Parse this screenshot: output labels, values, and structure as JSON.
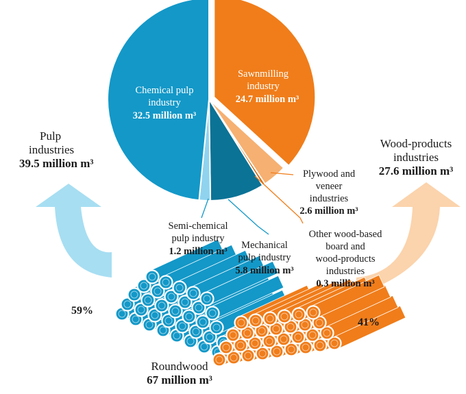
{
  "colors": {
    "chemical": "#1398c8",
    "semi_chemical": "#8fd3ef",
    "mechanical": "#0b7396",
    "sawn": "#f07d1a",
    "plywood": "#f6b071",
    "other_wood": "#c96408",
    "pulp_arrow": "#a7def2",
    "wood_arrow": "#fbd3ac",
    "log_blue": "#1398c8",
    "log_orange": "#f07d1a"
  },
  "chart_data": {
    "type": "pie",
    "unit": "million m³",
    "slices": [
      {
        "name": "Sawnmilling industry",
        "value": 24.7,
        "label_line1": "Sawnmilling",
        "label_line2": "industry",
        "value_label": "24.7 million m³",
        "color_key": "sawn"
      },
      {
        "name": "Plywood and veneer industries",
        "value": 2.6,
        "label_lines": [
          "Plywood and",
          "veneer",
          "industries"
        ],
        "value_label": "2.6 million m³",
        "color_key": "plywood"
      },
      {
        "name": "Other wood-based board and wood-products industries",
        "value": 0.3,
        "label_lines": [
          "Other wood-based",
          "board and",
          "wood-products",
          "industries"
        ],
        "value_label": "0.3 million m³",
        "color_key": "other_wood"
      },
      {
        "name": "Mechanical pulp industry",
        "value": 5.8,
        "label_lines": [
          "Mechanical",
          "pulp industry"
        ],
        "value_label": "5.8 million m³",
        "color_key": "mechanical"
      },
      {
        "name": "Semi-chemical pulp industry",
        "value": 1.2,
        "label_lines": [
          "Semi-chemical",
          "pulp industry"
        ],
        "value_label": "1.2 million m³",
        "color_key": "semi_chemical"
      },
      {
        "name": "Chemical pulp industry",
        "value": 32.5,
        "label_line1": "Chemical pulp",
        "label_line2": "industry",
        "value_label": "32.5 million m³",
        "color_key": "chemical"
      }
    ],
    "groups": {
      "pulp": {
        "lines": [
          "Pulp",
          "industries"
        ],
        "value_label": "39.5 million m³",
        "share_label": "59%",
        "value": 39.5,
        "share": 59
      },
      "wood": {
        "lines": [
          "Wood-products",
          "industries"
        ],
        "value_label": "27.6 million m³",
        "share_label": "41%",
        "value": 27.6,
        "share": 41
      }
    },
    "total": {
      "label": "Roundwood",
      "value_label": "67 million m³",
      "value": 67
    }
  }
}
